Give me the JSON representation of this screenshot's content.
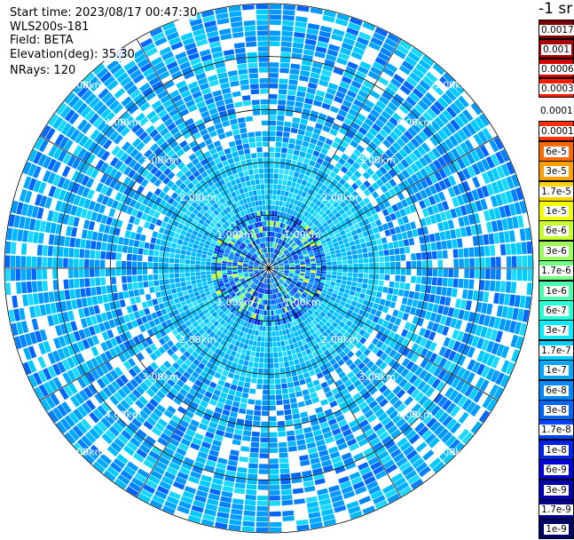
{
  "info": {
    "start_time": "Start time: 2023/08/17 00:47:30",
    "device": "WLS200s-181",
    "field": "Field: BETA",
    "elevation": "Elevation(deg): 35.30",
    "nrays": "NRays: 120"
  },
  "colorbar": {
    "unit_label": "-1 sr",
    "upper": [
      {
        "label": "0.0017",
        "color": "#7d0000"
      },
      {
        "label": "0.001",
        "color": "#a80000"
      },
      {
        "label": "0.0006",
        "color": "#d40000"
      },
      {
        "label": "0.0003",
        "color": "#ff1a00"
      }
    ],
    "lower": [
      {
        "label": "0.00017",
        "color": "#ffffff"
      },
      {
        "label": "0.0001",
        "color": "#ff3000"
      },
      {
        "label": "6e-5",
        "color": "#ff6a00"
      },
      {
        "label": "3e-5",
        "color": "#ffa000"
      },
      {
        "label": "1.7e-5",
        "color": "#ffd400"
      },
      {
        "label": "1e-5",
        "color": "#f2ff00"
      },
      {
        "label": "6e-6",
        "color": "#c6ff2c"
      },
      {
        "label": "3e-6",
        "color": "#9cff5a"
      },
      {
        "label": "1.7e-6",
        "color": "#74ff84"
      },
      {
        "label": "1e-6",
        "color": "#4cffae"
      },
      {
        "label": "6e-7",
        "color": "#26ffd6"
      },
      {
        "label": "3e-7",
        "color": "#00eeff"
      },
      {
        "label": "1.7e-7",
        "color": "#00ccff"
      },
      {
        "label": "1e-7",
        "color": "#00a8ff"
      },
      {
        "label": "6e-8",
        "color": "#0088ff"
      },
      {
        "label": "3e-8",
        "color": "#0066ff"
      },
      {
        "label": "1.7e-8",
        "color": "#0044ff"
      },
      {
        "label": "1e-8",
        "color": "#0022ee"
      },
      {
        "label": "6e-9",
        "color": "#0000d8"
      },
      {
        "label": "3e-9",
        "color": "#0000b0"
      },
      {
        "label": "1.7e-9",
        "color": "#000088"
      },
      {
        "label": "1e-9",
        "color": "#000066"
      }
    ]
  },
  "chart_data": {
    "type": "heatmap",
    "projection": "polar PPI scan",
    "field": "BETA",
    "nrays": 120,
    "range_rings_km": [
      1,
      2,
      3,
      4,
      5
    ],
    "ring_labels": [
      "1.00km",
      "2.00km",
      "3.00km",
      "4.00km",
      "5.00km"
    ],
    "max_range_km": 5,
    "spokes_deg": [
      0,
      30,
      60,
      90,
      120,
      150,
      180,
      210,
      240,
      270,
      300,
      330
    ],
    "dominant_values": "mostly 1e-8 to 3e-7 (blue to cyan), with patches near 1e-6 to 1e-5 (green to yellow) near 1 km"
  }
}
